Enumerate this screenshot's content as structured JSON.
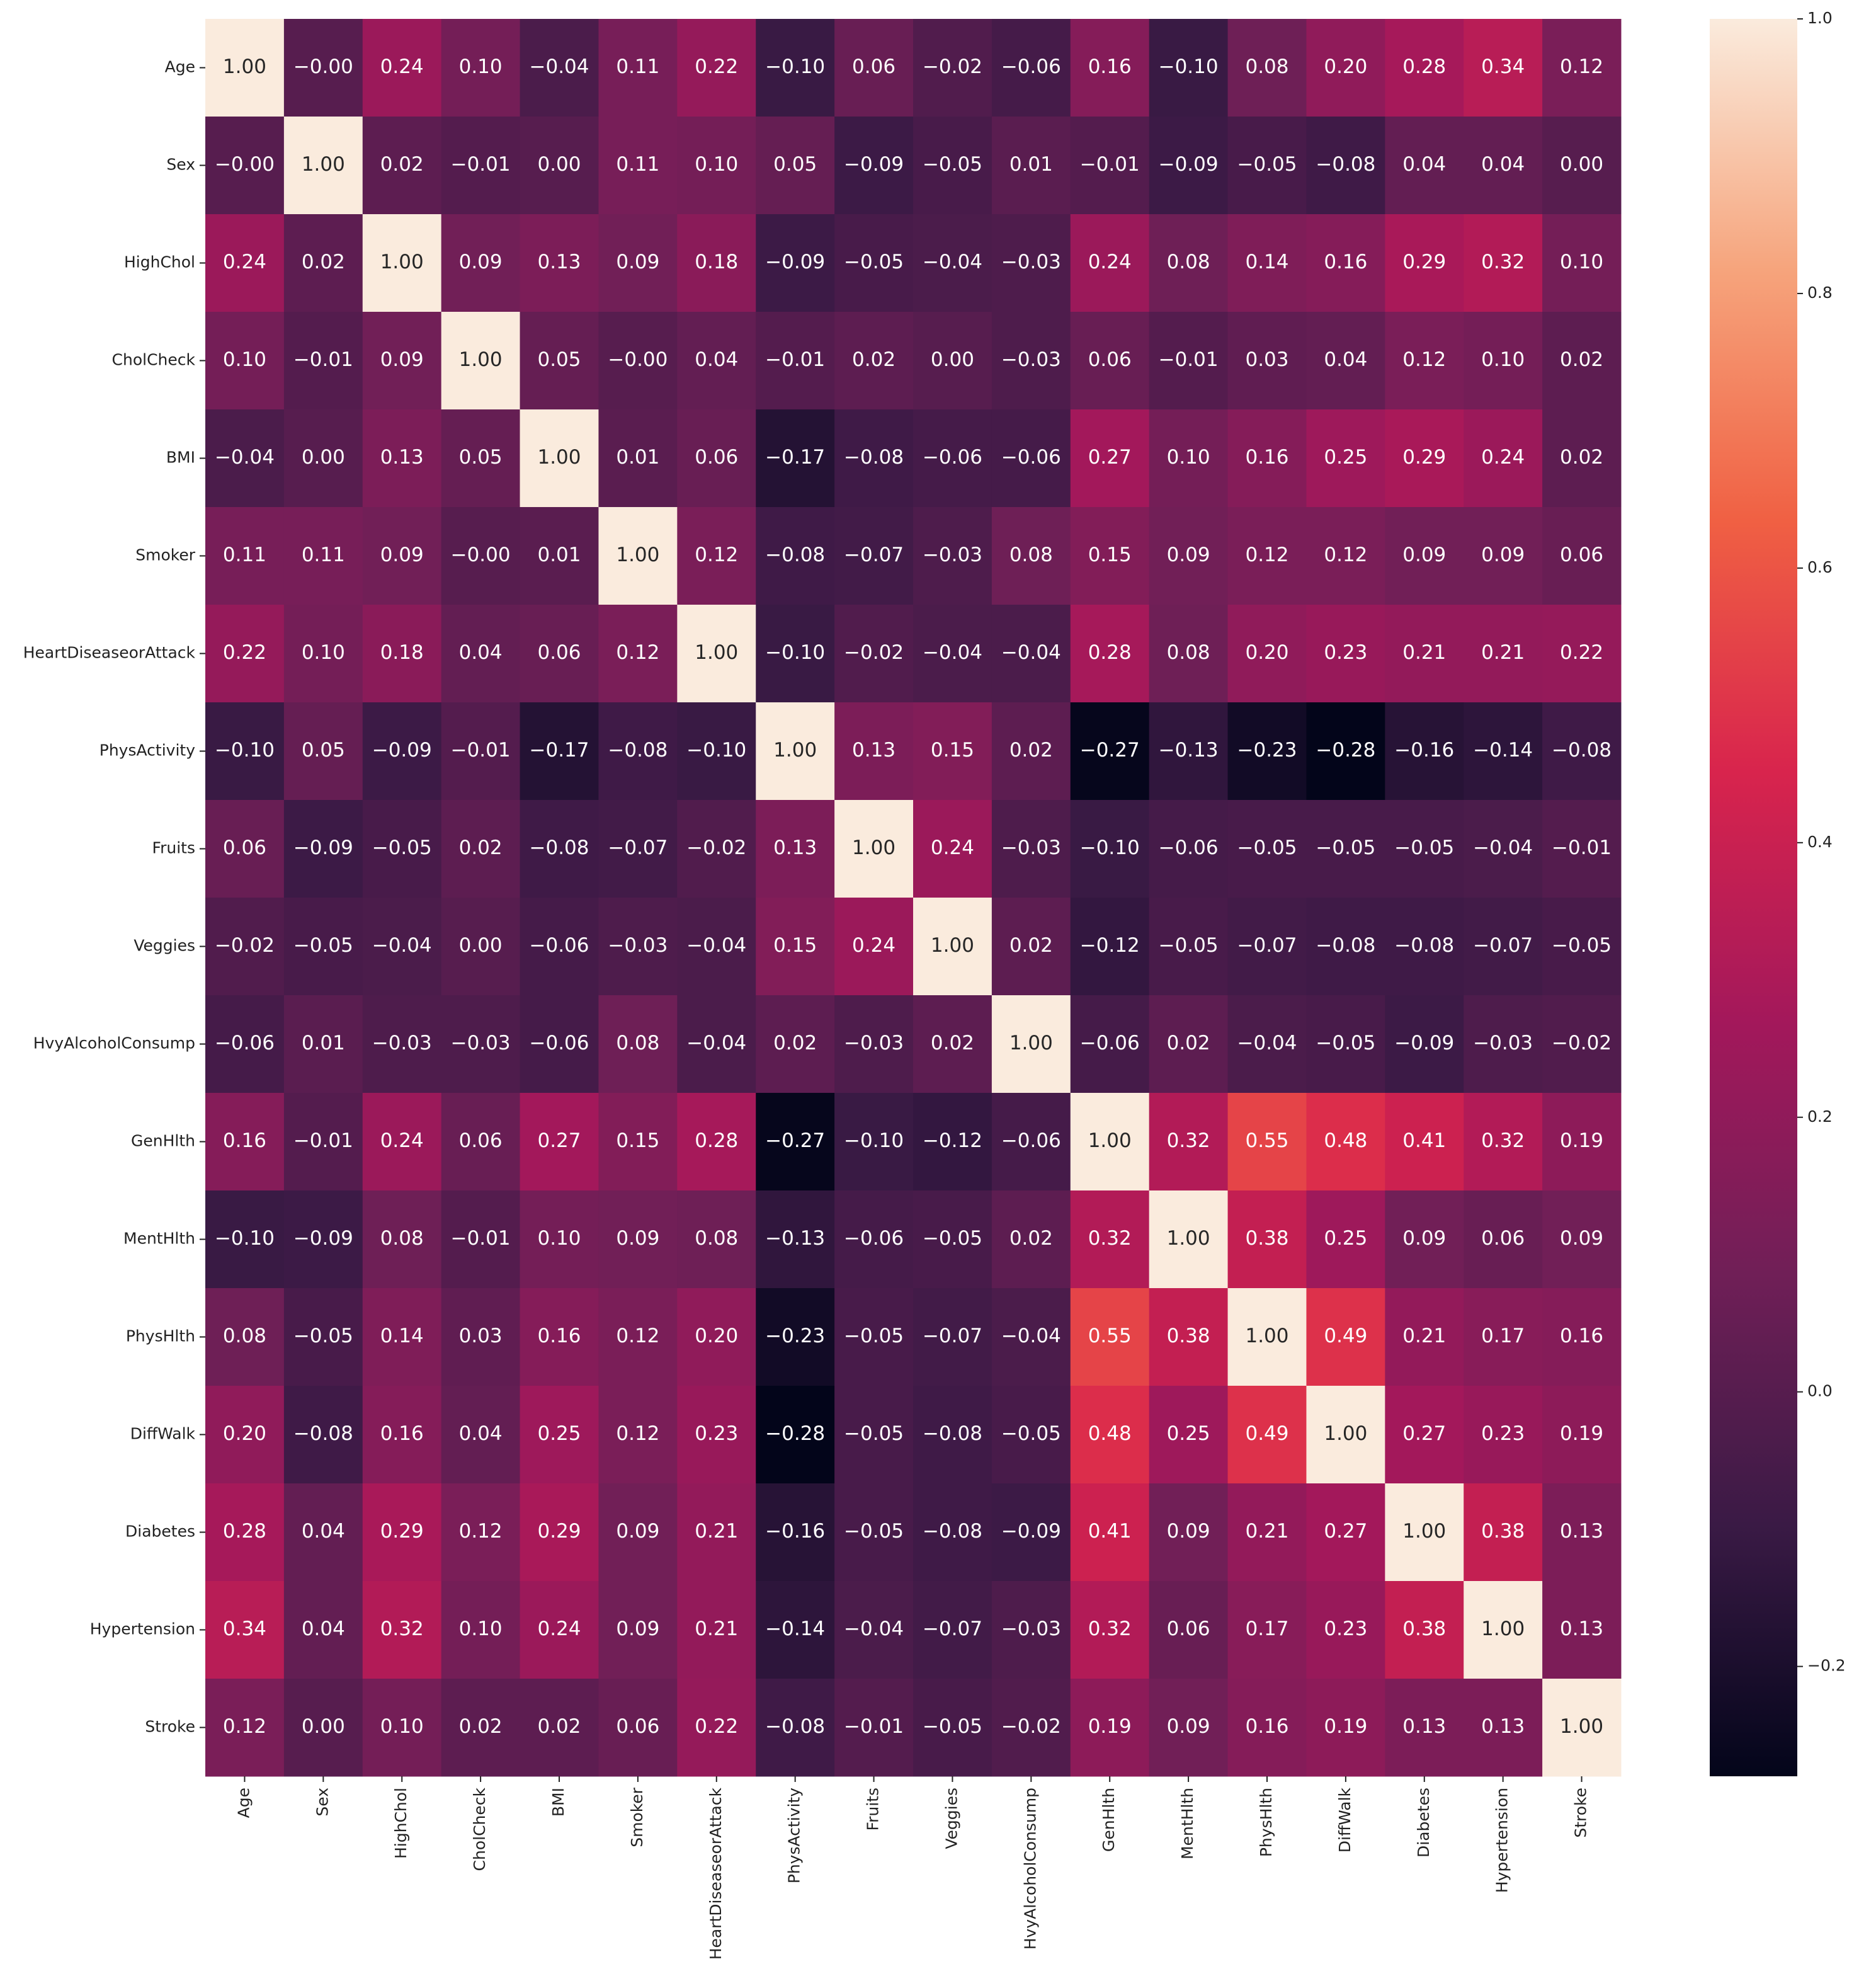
{
  "chart_data": {
    "type": "heatmap",
    "categories": [
      "Age",
      "Sex",
      "HighChol",
      "CholCheck",
      "BMI",
      "Smoker",
      "HeartDiseaseorAttack",
      "PhysActivity",
      "Fruits",
      "Veggies",
      "HvyAlcoholConsump",
      "GenHlth",
      "MentHlth",
      "PhysHlth",
      "DiffWalk",
      "Diabetes",
      "Hypertension",
      "Stroke"
    ],
    "y_categories": [
      "Age",
      "Sex",
      "HighChol",
      "CholCheck",
      "BMI",
      "Smoker",
      "HeartDiseaseorAttack",
      "PhysActivity",
      "Fruits",
      "Veggies",
      "HvyAlcoholConsump",
      "GenHlth",
      "MentHlth",
      "PhysHlth",
      "DiffWalk",
      "Diabetes",
      "Hypertension",
      "Stroke"
    ],
    "values": [
      [
        1,
        0,
        0.24,
        0.1,
        -0.04,
        0.11,
        0.22,
        -0.1,
        0.06,
        -0.02,
        -0.06,
        0.16,
        -0.1,
        0.08,
        0.2,
        0.28,
        0.34,
        0.12
      ],
      [
        0,
        1,
        0.02,
        -0.01,
        0,
        0.11,
        0.1,
        0.05,
        -0.09,
        -0.05,
        0.01,
        -0.01,
        -0.09,
        -0.05,
        -0.08,
        0.04,
        0.04,
        0
      ],
      [
        0.24,
        0.02,
        1,
        0.09,
        0.13,
        0.09,
        0.18,
        -0.09,
        -0.05,
        -0.04,
        -0.03,
        0.24,
        0.08,
        0.14,
        0.16,
        0.29,
        0.32,
        0.1
      ],
      [
        0.1,
        -0.01,
        0.09,
        1,
        0.05,
        0,
        0.04,
        -0.01,
        0.02,
        0,
        -0.03,
        0.06,
        -0.01,
        0.03,
        0.04,
        0.12,
        0.1,
        0.02
      ],
      [
        -0.04,
        0,
        0.13,
        0.05,
        1,
        0.01,
        0.06,
        -0.17,
        -0.08,
        -0.06,
        -0.06,
        0.27,
        0.1,
        0.16,
        0.25,
        0.29,
        0.24,
        0.02
      ],
      [
        0.11,
        0.11,
        0.09,
        0,
        0.01,
        1,
        0.12,
        -0.08,
        -0.07,
        -0.03,
        0.08,
        0.15,
        0.09,
        0.12,
        0.12,
        0.09,
        0.09,
        0.06
      ],
      [
        0.22,
        0.1,
        0.18,
        0.04,
        0.06,
        0.12,
        1,
        -0.1,
        -0.02,
        -0.04,
        -0.04,
        0.28,
        0.08,
        0.2,
        0.23,
        0.21,
        0.21,
        0.22
      ],
      [
        -0.1,
        0.05,
        -0.09,
        -0.01,
        -0.17,
        -0.08,
        -0.1,
        1,
        0.13,
        0.15,
        0.02,
        -0.27,
        -0.13,
        -0.23,
        -0.28,
        -0.16,
        -0.14,
        -0.08
      ],
      [
        0.06,
        -0.09,
        -0.05,
        0.02,
        -0.08,
        -0.07,
        -0.02,
        0.13,
        1,
        0.24,
        -0.03,
        -0.1,
        -0.06,
        -0.05,
        -0.05,
        -0.05,
        -0.04,
        -0.01
      ],
      [
        -0.02,
        -0.05,
        -0.04,
        0,
        -0.06,
        -0.03,
        -0.04,
        0.15,
        0.24,
        1,
        0.02,
        -0.12,
        -0.05,
        -0.07,
        -0.08,
        -0.08,
        -0.07,
        -0.05
      ],
      [
        -0.06,
        0.01,
        -0.03,
        -0.03,
        -0.06,
        0.08,
        -0.04,
        0.02,
        -0.03,
        0.02,
        1,
        -0.06,
        0.02,
        -0.04,
        -0.05,
        -0.09,
        -0.03,
        -0.02
      ],
      [
        0.16,
        -0.01,
        0.24,
        0.06,
        0.27,
        0.15,
        0.28,
        -0.27,
        -0.1,
        -0.12,
        -0.06,
        1,
        0.32,
        0.55,
        0.48,
        0.41,
        0.32,
        0.19
      ],
      [
        -0.1,
        -0.09,
        0.08,
        -0.01,
        0.1,
        0.09,
        0.08,
        -0.13,
        -0.06,
        -0.05,
        0.02,
        0.32,
        1,
        0.38,
        0.25,
        0.09,
        0.06,
        0.09
      ],
      [
        0.08,
        -0.05,
        0.14,
        0.03,
        0.16,
        0.12,
        0.2,
        -0.23,
        -0.05,
        -0.07,
        -0.04,
        0.55,
        0.38,
        1,
        0.49,
        0.21,
        0.17,
        0.16
      ],
      [
        0.2,
        -0.08,
        0.16,
        0.04,
        0.25,
        0.12,
        0.23,
        -0.28,
        -0.05,
        -0.08,
        -0.05,
        0.48,
        0.25,
        0.49,
        1,
        0.27,
        0.23,
        0.19
      ],
      [
        0.28,
        0.04,
        0.29,
        0.12,
        0.29,
        0.09,
        0.21,
        -0.16,
        -0.05,
        -0.08,
        -0.09,
        0.41,
        0.09,
        0.21,
        0.27,
        1,
        0.38,
        0.13
      ],
      [
        0.34,
        0.04,
        0.32,
        0.1,
        0.24,
        0.09,
        0.21,
        -0.14,
        -0.04,
        -0.07,
        -0.03,
        0.32,
        0.06,
        0.17,
        0.23,
        0.38,
        1,
        0.13
      ],
      [
        0.12,
        0,
        0.1,
        0.02,
        0.02,
        0.06,
        0.22,
        -0.08,
        -0.01,
        -0.05,
        -0.02,
        0.19,
        0.09,
        0.16,
        0.19,
        0.13,
        0.13,
        1
      ]
    ],
    "value_labels": [
      [
        "1.00",
        "−0.00",
        "0.24",
        "0.10",
        "−0.04",
        "0.11",
        "0.22",
        "−0.10",
        "0.06",
        "−0.02",
        "−0.06",
        "0.16",
        "−0.10",
        "0.08",
        "0.20",
        "0.28",
        "0.34",
        "0.12"
      ],
      [
        "−0.00",
        "1.00",
        "0.02",
        "−0.01",
        "0.00",
        "0.11",
        "0.10",
        "0.05",
        "−0.09",
        "−0.05",
        "0.01",
        "−0.01",
        "−0.09",
        "−0.05",
        "−0.08",
        "0.04",
        "0.04",
        "0.00"
      ],
      [
        "0.24",
        "0.02",
        "1.00",
        "0.09",
        "0.13",
        "0.09",
        "0.18",
        "−0.09",
        "−0.05",
        "−0.04",
        "−0.03",
        "0.24",
        "0.08",
        "0.14",
        "0.16",
        "0.29",
        "0.32",
        "0.10"
      ],
      [
        "0.10",
        "−0.01",
        "0.09",
        "1.00",
        "0.05",
        "−0.00",
        "0.04",
        "−0.01",
        "0.02",
        "0.00",
        "−0.03",
        "0.06",
        "−0.01",
        "0.03",
        "0.04",
        "0.12",
        "0.10",
        "0.02"
      ],
      [
        "−0.04",
        "0.00",
        "0.13",
        "0.05",
        "1.00",
        "0.01",
        "0.06",
        "−0.17",
        "−0.08",
        "−0.06",
        "−0.06",
        "0.27",
        "0.10",
        "0.16",
        "0.25",
        "0.29",
        "0.24",
        "0.02"
      ],
      [
        "0.11",
        "0.11",
        "0.09",
        "−0.00",
        "0.01",
        "1.00",
        "0.12",
        "−0.08",
        "−0.07",
        "−0.03",
        "0.08",
        "0.15",
        "0.09",
        "0.12",
        "0.12",
        "0.09",
        "0.09",
        "0.06"
      ],
      [
        "0.22",
        "0.10",
        "0.18",
        "0.04",
        "0.06",
        "0.12",
        "1.00",
        "−0.10",
        "−0.02",
        "−0.04",
        "−0.04",
        "0.28",
        "0.08",
        "0.20",
        "0.23",
        "0.21",
        "0.21",
        "0.22"
      ],
      [
        "−0.10",
        "0.05",
        "−0.09",
        "−0.01",
        "−0.17",
        "−0.08",
        "−0.10",
        "1.00",
        "0.13",
        "0.15",
        "0.02",
        "−0.27",
        "−0.13",
        "−0.23",
        "−0.28",
        "−0.16",
        "−0.14",
        "−0.08"
      ],
      [
        "0.06",
        "−0.09",
        "−0.05",
        "0.02",
        "−0.08",
        "−0.07",
        "−0.02",
        "0.13",
        "1.00",
        "0.24",
        "−0.03",
        "−0.10",
        "−0.06",
        "−0.05",
        "−0.05",
        "−0.05",
        "−0.04",
        "−0.01"
      ],
      [
        "−0.02",
        "−0.05",
        "−0.04",
        "0.00",
        "−0.06",
        "−0.03",
        "−0.04",
        "0.15",
        "0.24",
        "1.00",
        "0.02",
        "−0.12",
        "−0.05",
        "−0.07",
        "−0.08",
        "−0.08",
        "−0.07",
        "−0.05"
      ],
      [
        "−0.06",
        "0.01",
        "−0.03",
        "−0.03",
        "−0.06",
        "0.08",
        "−0.04",
        "0.02",
        "−0.03",
        "0.02",
        "1.00",
        "−0.06",
        "0.02",
        "−0.04",
        "−0.05",
        "−0.09",
        "−0.03",
        "−0.02"
      ],
      [
        "0.16",
        "−0.01",
        "0.24",
        "0.06",
        "0.27",
        "0.15",
        "0.28",
        "−0.27",
        "−0.10",
        "−0.12",
        "−0.06",
        "1.00",
        "0.32",
        "0.55",
        "0.48",
        "0.41",
        "0.32",
        "0.19"
      ],
      [
        "−0.10",
        "−0.09",
        "0.08",
        "−0.01",
        "0.10",
        "0.09",
        "0.08",
        "−0.13",
        "−0.06",
        "−0.05",
        "0.02",
        "0.32",
        "1.00",
        "0.38",
        "0.25",
        "0.09",
        "0.06",
        "0.09"
      ],
      [
        "0.08",
        "−0.05",
        "0.14",
        "0.03",
        "0.16",
        "0.12",
        "0.20",
        "−0.23",
        "−0.05",
        "−0.07",
        "−0.04",
        "0.55",
        "0.38",
        "1.00",
        "0.49",
        "0.21",
        "0.17",
        "0.16"
      ],
      [
        "0.20",
        "−0.08",
        "0.16",
        "0.04",
        "0.25",
        "0.12",
        "0.23",
        "−0.28",
        "−0.05",
        "−0.08",
        "−0.05",
        "0.48",
        "0.25",
        "0.49",
        "1.00",
        "0.27",
        "0.23",
        "0.19"
      ],
      [
        "0.28",
        "0.04",
        "0.29",
        "0.12",
        "0.29",
        "0.09",
        "0.21",
        "−0.16",
        "−0.05",
        "−0.08",
        "−0.09",
        "0.41",
        "0.09",
        "0.21",
        "0.27",
        "1.00",
        "0.38",
        "0.13"
      ],
      [
        "0.34",
        "0.04",
        "0.32",
        "0.10",
        "0.24",
        "0.09",
        "0.21",
        "−0.14",
        "−0.04",
        "−0.07",
        "−0.03",
        "0.32",
        "0.06",
        "0.17",
        "0.23",
        "0.38",
        "1.00",
        "0.13"
      ],
      [
        "0.12",
        "0.00",
        "0.10",
        "0.02",
        "0.02",
        "0.06",
        "0.22",
        "−0.08",
        "−0.01",
        "−0.05",
        "−0.02",
        "0.19",
        "0.09",
        "0.16",
        "0.19",
        "0.13",
        "0.13",
        "1.00"
      ]
    ],
    "clim": [
      -0.28,
      1
    ],
    "cticks": [
      {
        "value": -0.2,
        "label": "−0.2"
      },
      {
        "value": 0,
        "label": "0.0"
      },
      0.2,
      0.4,
      0.6,
      0.8,
      {
        "value": 1,
        "label": "1.0"
      }
    ],
    "colormap": [
      "#03051a",
      "#3a1a45",
      "#701f57",
      "#a3185b",
      "#d8244d",
      "#f06043",
      "#f6a47c",
      "#faebdd"
    ]
  }
}
